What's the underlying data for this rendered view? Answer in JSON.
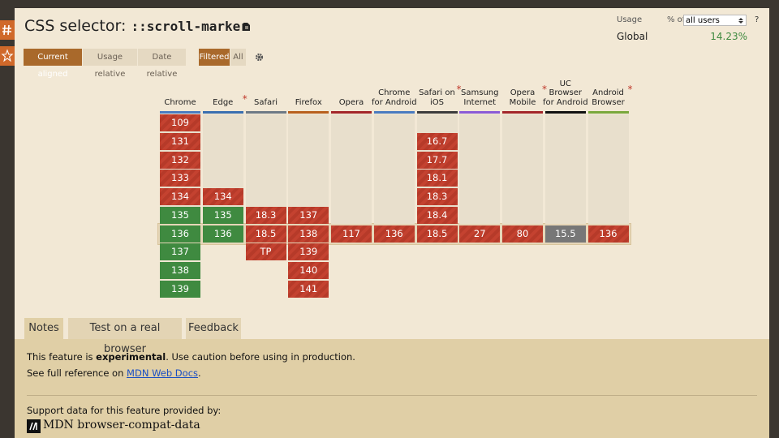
{
  "header": {
    "title": "CSS selector:",
    "selector": "::scroll-marker",
    "usage_label": "Usage",
    "percent_of": "% of",
    "users_select": "all users",
    "help": "?",
    "region": "Global",
    "usage": "14.23%"
  },
  "toolbar": {
    "view_modes": [
      "Current aligned",
      "Usage relative",
      "Date relative"
    ],
    "filters": [
      "Filtered",
      "All"
    ]
  },
  "browsers": [
    {
      "name": "Chrome",
      "color": "#4a7bc0",
      "versions": [
        "109",
        "131",
        "132",
        "133",
        "134",
        "135",
        "136",
        "137",
        "138",
        "139"
      ],
      "support": [
        "n",
        "n",
        "n",
        "n",
        "n",
        "y",
        "y",
        "y",
        "y",
        "y"
      ]
    },
    {
      "name": "Edge",
      "asterisk": "*",
      "color": "#3a6fb0",
      "versions": [
        null,
        null,
        null,
        null,
        "134",
        "135",
        "136",
        null,
        null,
        null
      ],
      "support": [
        null,
        null,
        null,
        null,
        "n",
        "y",
        "y",
        null,
        null,
        null
      ]
    },
    {
      "name": "Safari",
      "color": "#6d7a86",
      "versions": [
        null,
        null,
        null,
        null,
        null,
        "18.3",
        "18.5",
        "TP",
        null,
        null
      ],
      "support": [
        null,
        null,
        null,
        null,
        null,
        "n",
        "n",
        "n",
        null,
        null
      ]
    },
    {
      "name": "Firefox",
      "color": "#b8601e",
      "versions": [
        null,
        null,
        null,
        null,
        null,
        "137",
        "138",
        "139",
        "140",
        "141"
      ],
      "support": [
        null,
        null,
        null,
        null,
        null,
        "n",
        "n",
        "n",
        "n",
        "n"
      ]
    },
    {
      "name": "Opera",
      "color": "#a3262a",
      "versions": [
        null,
        null,
        null,
        null,
        null,
        null,
        "117",
        null,
        null,
        null
      ],
      "support": [
        null,
        null,
        null,
        null,
        null,
        null,
        "n",
        null,
        null,
        null
      ]
    },
    {
      "name": "Chrome for Android",
      "color": "#4a7bc0",
      "versions": [
        null,
        null,
        null,
        null,
        null,
        null,
        "136",
        null,
        null,
        null
      ],
      "support": [
        null,
        null,
        null,
        null,
        null,
        null,
        "n",
        null,
        null,
        null
      ]
    },
    {
      "name": "Safari on iOS",
      "asterisk": "*",
      "color": "#3c3c3c",
      "versions": [
        null,
        "16.7",
        "17.7",
        "18.1",
        "18.3",
        "18.4",
        "18.5",
        null,
        null,
        null
      ],
      "support": [
        null,
        "n",
        "n",
        "n",
        "n",
        "n",
        "n",
        null,
        null,
        null
      ]
    },
    {
      "name": "Samsung Internet",
      "color": "#8a5ad6",
      "versions": [
        null,
        null,
        null,
        null,
        null,
        null,
        "27",
        null,
        null,
        null
      ],
      "support": [
        null,
        null,
        null,
        null,
        null,
        null,
        "n",
        null,
        null,
        null
      ]
    },
    {
      "name": "Opera Mobile",
      "asterisk": "*",
      "color": "#a3262a",
      "versions": [
        null,
        null,
        null,
        null,
        null,
        null,
        "80",
        null,
        null,
        null
      ],
      "support": [
        null,
        null,
        null,
        null,
        null,
        null,
        "n",
        null,
        null,
        null
      ]
    },
    {
      "name": "UC Browser for Android",
      "color": "#111111",
      "versions": [
        null,
        null,
        null,
        null,
        null,
        null,
        "15.5",
        null,
        null,
        null
      ],
      "support": [
        null,
        null,
        null,
        null,
        null,
        null,
        "u",
        null,
        null,
        null
      ]
    },
    {
      "name": "Android Browser",
      "asterisk": "*",
      "color": "#7aa83c",
      "versions": [
        null,
        null,
        null,
        null,
        null,
        null,
        "136",
        null,
        null,
        null
      ],
      "support": [
        null,
        null,
        null,
        null,
        null,
        null,
        "n",
        null,
        null,
        null
      ]
    }
  ],
  "tabs": [
    "Notes",
    "Test on a real browser",
    "Feedback"
  ],
  "notes": {
    "line1": [
      "This feature is ",
      "experimental",
      ". Use caution before using in production."
    ],
    "line2": [
      "See full reference on ",
      "MDN Web Docs",
      "."
    ],
    "credit": "Support data for this feature provided by:",
    "source": "MDN browser-compat-data"
  }
}
